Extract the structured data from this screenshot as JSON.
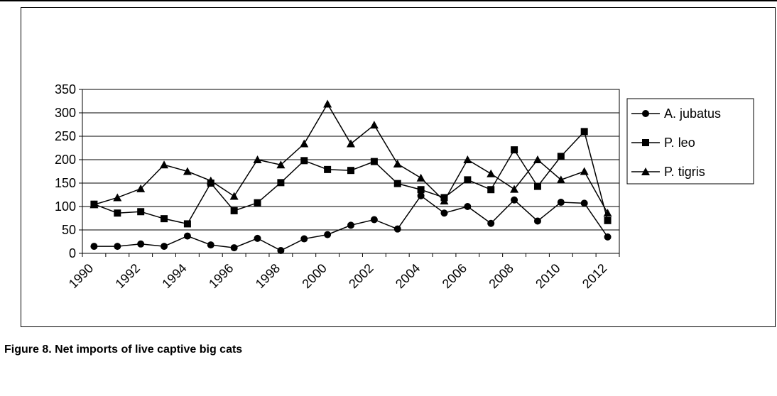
{
  "caption": "Figure 8. Net imports of live captive big cats",
  "chart_data": {
    "type": "line",
    "title": "",
    "xlabel": "",
    "ylabel": "",
    "x": [
      1990,
      1991,
      1992,
      1993,
      1994,
      1995,
      1996,
      1997,
      1998,
      1999,
      2000,
      2001,
      2002,
      2003,
      2004,
      2005,
      2006,
      2007,
      2008,
      2009,
      2010,
      2011,
      2012
    ],
    "x_tick_labels": [
      "1990",
      "1992",
      "1994",
      "1996",
      "1998",
      "2000",
      "2002",
      "2004",
      "2006",
      "2008",
      "2010",
      "2012"
    ],
    "ylim": [
      0,
      350
    ],
    "y_ticks": [
      0,
      50,
      100,
      150,
      200,
      250,
      300,
      350
    ],
    "grid": "horizontal",
    "legend_position": "right",
    "series": [
      {
        "name": "A. jubatus",
        "marker": "circle",
        "values": [
          15,
          15,
          20,
          15,
          37,
          18,
          12,
          32,
          6,
          31,
          40,
          60,
          72,
          52,
          123,
          86,
          100,
          64,
          114,
          69,
          109,
          107,
          35
        ]
      },
      {
        "name": "P. leo",
        "marker": "square",
        "values": [
          105,
          86,
          89,
          74,
          63,
          150,
          91,
          108,
          151,
          198,
          179,
          177,
          196,
          149,
          136,
          119,
          157,
          136,
          221,
          143,
          207,
          260,
          70
        ]
      },
      {
        "name": "P. tigris",
        "marker": "triangle",
        "values": [
          104,
          119,
          138,
          189,
          175,
          155,
          122,
          200,
          189,
          234,
          319,
          234,
          274,
          191,
          161,
          112,
          200,
          170,
          137,
          200,
          157,
          175,
          86
        ]
      }
    ]
  }
}
